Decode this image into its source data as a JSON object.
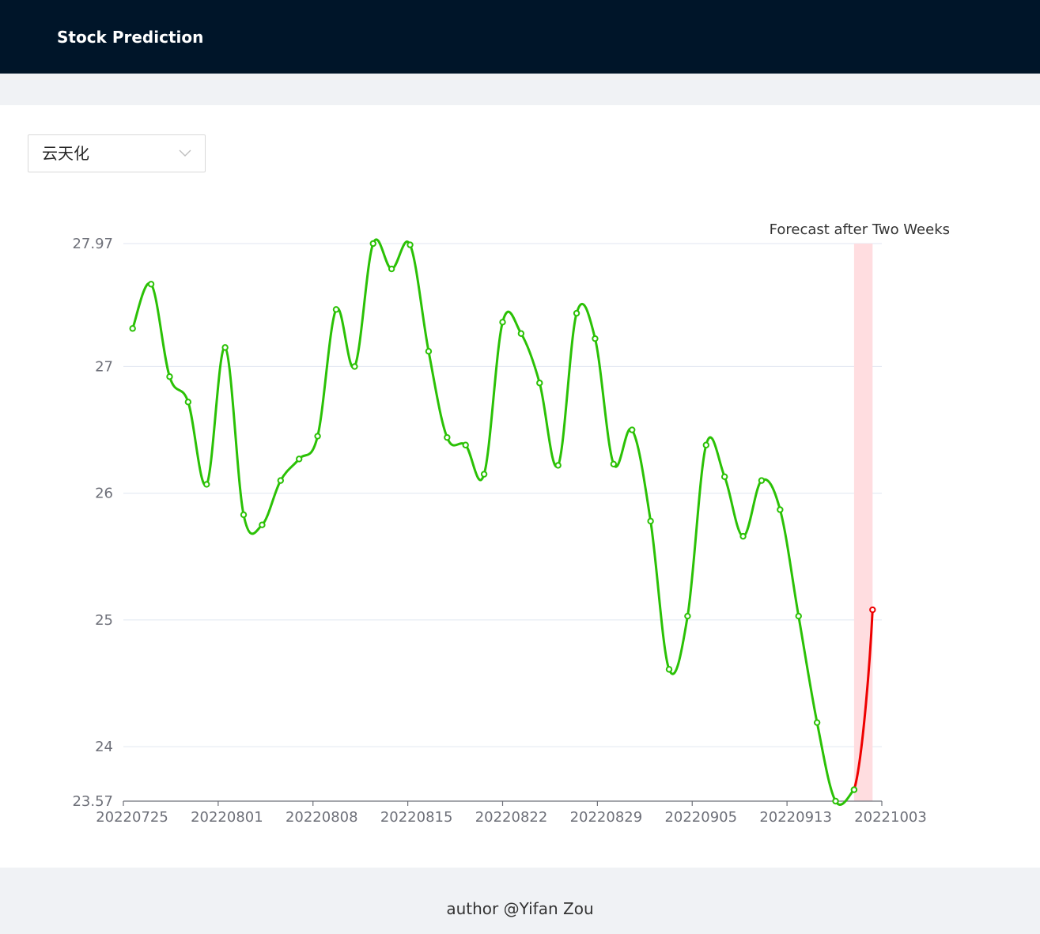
{
  "header": {
    "title": "Stock Prediction"
  },
  "selector": {
    "value": "云天化"
  },
  "footer": {
    "credit": "author @Yifan Zou"
  },
  "chart_data": {
    "type": "line",
    "title": "",
    "xlabel": "",
    "ylabel": "",
    "ylim": [
      23.57,
      27.97
    ],
    "y_ticks": [
      "23.57",
      "24",
      "25",
      "26",
      "27",
      "27.97"
    ],
    "x_ticks": [
      "20220725",
      "20220801",
      "20220808",
      "20220815",
      "20220822",
      "20220829",
      "20220905",
      "20220913",
      "20221003"
    ],
    "grid": true,
    "annotation": {
      "label": "Forecast after Two Weeks",
      "color": "#ffdde0"
    },
    "series": [
      {
        "color": "#2bc106",
        "values": [
          27.3,
          27.65,
          26.92,
          26.72,
          26.07,
          27.15,
          25.83,
          25.75,
          26.1,
          26.27,
          26.45,
          27.45,
          27.0,
          27.97,
          27.77,
          27.96,
          27.12,
          26.44,
          26.38,
          26.15,
          27.35,
          27.26,
          26.87,
          26.22,
          27.42,
          27.22,
          26.23,
          26.5,
          25.78,
          24.61,
          25.03,
          26.38,
          26.13,
          25.66,
          26.1,
          25.87,
          25.03,
          24.19,
          23.57,
          23.66
        ]
      },
      {
        "color": "#ee0000",
        "values": [
          23.66,
          25.08
        ]
      }
    ]
  }
}
